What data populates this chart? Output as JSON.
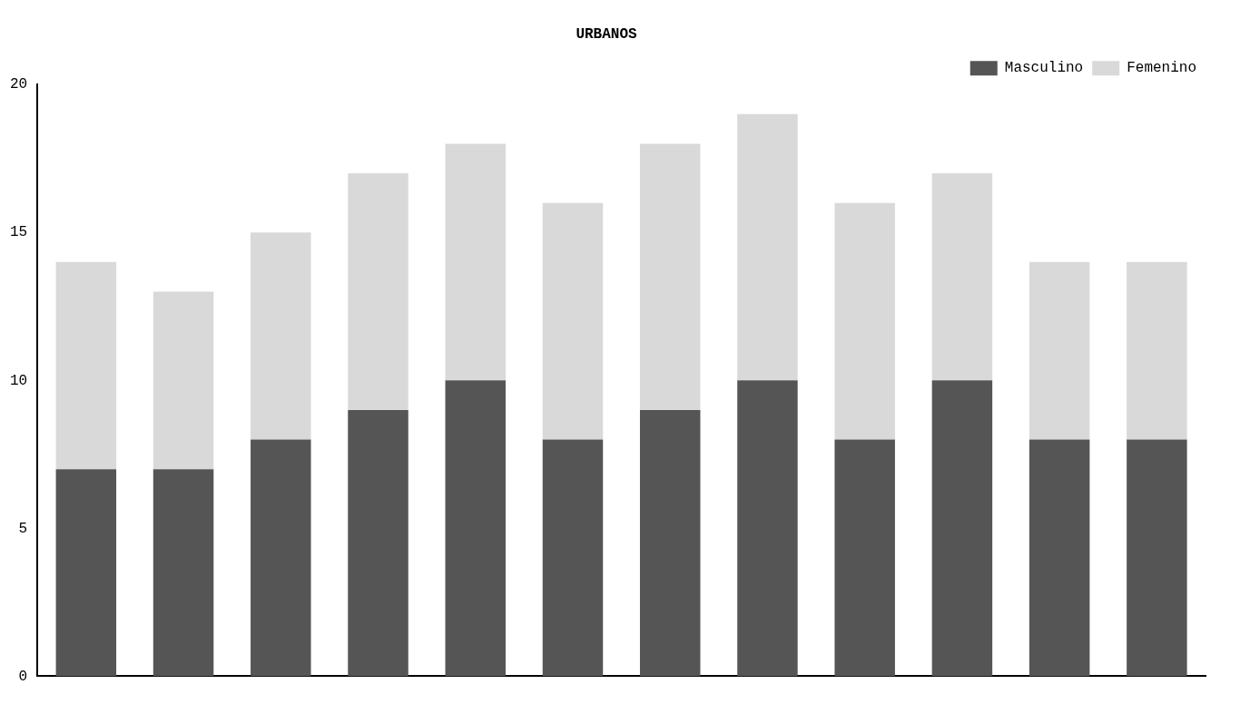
{
  "chart_data": {
    "type": "bar",
    "title": "URBANOS",
    "stacked": true,
    "categories": [
      null,
      null,
      null,
      null,
      null,
      null,
      null,
      null,
      null,
      null,
      null,
      null
    ],
    "series": [
      {
        "name": "Masculino",
        "color": "#555555",
        "values": [
          7,
          7,
          8,
          9,
          10,
          8,
          9,
          10,
          8,
          10,
          8,
          8
        ]
      },
      {
        "name": "Femenino",
        "color": "#d9d9d9",
        "values": [
          7,
          6,
          7,
          8,
          8,
          8,
          9,
          9,
          8,
          7,
          6,
          6
        ]
      }
    ],
    "ylim": [
      0,
      20
    ],
    "yticks": [
      0,
      5,
      10,
      15,
      20
    ],
    "grid": false,
    "legend": "top right",
    "tick_labels": "y"
  }
}
